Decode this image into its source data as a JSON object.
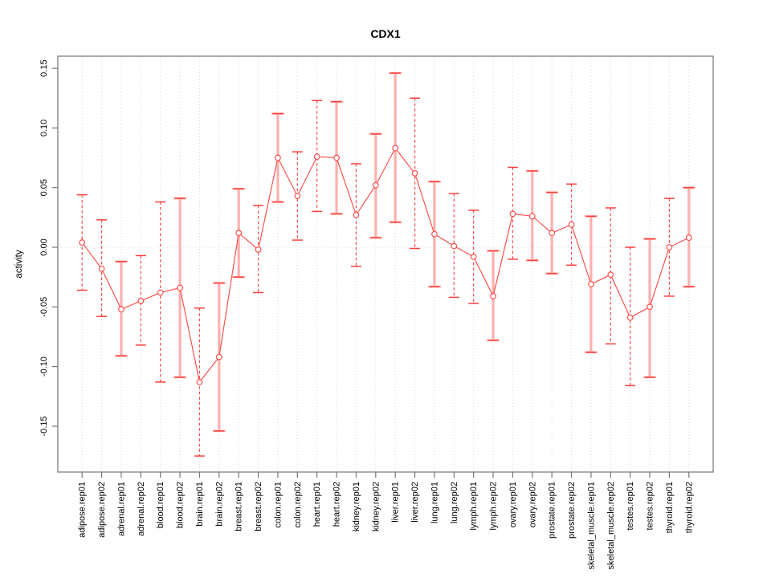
{
  "page": {
    "background": "#ffffff"
  },
  "chart_data": {
    "type": "line",
    "subtype": "points-with-error-bars",
    "title": "CDX1",
    "xlabel": "",
    "ylabel": "activity",
    "ylim": [
      -0.19,
      0.16
    ],
    "yticks": [
      0.15,
      0.1,
      0.05,
      0.0,
      -0.05,
      -0.1,
      -0.15
    ],
    "ytick_labels": [
      "0.15",
      "0.10",
      "0.05",
      "0.00",
      "-0.05",
      "-0.10",
      "-0.15"
    ],
    "grid": {
      "vertical_per_category": true,
      "zero_line_dotted": true,
      "style": "dotted",
      "color": "#d8d8d8"
    },
    "legend_position": "none",
    "categories": [
      "adipose.rep01",
      "adipose.rep02",
      "adrenal.rep01",
      "adrenal.rep02",
      "blood.rep01",
      "blood.rep02",
      "brain.rep01",
      "brain.rep02",
      "breast.rep01",
      "breast.rep02",
      "colon.rep01",
      "colon.rep02",
      "heart.rep01",
      "heart.rep02",
      "kidney.rep01",
      "kidney.rep02",
      "liver.rep01",
      "liver.rep02",
      "lung.rep01",
      "lung.rep02",
      "lymph.rep01",
      "lymph.rep02",
      "ovary.rep01",
      "ovary.rep02",
      "prostate.rep01",
      "prostate.rep02",
      "skeletal_muscle.rep01",
      "skeletal_muscle.rep02",
      "testes.rep01",
      "testes.rep02",
      "thyroid.rep01",
      "thyroid.rep02"
    ],
    "series": [
      {
        "name": "activity",
        "values": [
          0.004,
          -0.018,
          -0.052,
          -0.045,
          -0.038,
          -0.034,
          -0.113,
          -0.092,
          0.012,
          -0.002,
          0.075,
          0.043,
          0.076,
          0.075,
          0.027,
          0.052,
          0.083,
          0.062,
          0.011,
          0.001,
          -0.008,
          -0.041,
          0.028,
          0.026,
          0.012,
          0.019,
          -0.031,
          -0.023,
          -0.059,
          -0.05,
          0.0,
          0.008
        ],
        "ci_low": [
          -0.036,
          -0.058,
          -0.091,
          -0.082,
          -0.113,
          -0.109,
          -0.175,
          -0.154,
          -0.025,
          -0.038,
          0.038,
          0.006,
          0.03,
          0.028,
          -0.016,
          0.008,
          0.021,
          -0.001,
          -0.033,
          -0.042,
          -0.047,
          -0.078,
          -0.01,
          -0.011,
          -0.022,
          -0.015,
          -0.088,
          -0.081,
          -0.116,
          -0.109,
          -0.041,
          -0.033
        ],
        "ci_high": [
          0.044,
          0.023,
          -0.012,
          -0.007,
          0.038,
          0.041,
          -0.051,
          -0.03,
          0.049,
          0.035,
          0.112,
          0.08,
          0.123,
          0.122,
          0.07,
          0.095,
          0.146,
          0.125,
          0.055,
          0.045,
          0.031,
          -0.003,
          0.067,
          0.064,
          0.046,
          0.053,
          0.026,
          0.033,
          0.0,
          0.007,
          0.041,
          0.05
        ],
        "bar_style": [
          "dashed",
          "dashed",
          "solid",
          "dashed",
          "dashed",
          "solid",
          "dashed",
          "solid",
          "solid",
          "dashed",
          "solid",
          "dashed",
          "dashed",
          "solid",
          "dashed",
          "solid",
          "solid",
          "dashed",
          "solid",
          "dashed",
          "dashed",
          "solid",
          "dashed",
          "solid",
          "solid",
          "dashed",
          "solid",
          "dashed",
          "dashed",
          "solid",
          "dashed",
          "solid"
        ]
      }
    ],
    "colors": {
      "point": "#fb4b47",
      "line": "#fb4b47",
      "error_bar_dashed": "#fb4b47",
      "error_bar_solid": "#ffb1ae",
      "cap": "#fa403c",
      "grid": "#d8d8d8",
      "frame": "#757575"
    }
  }
}
